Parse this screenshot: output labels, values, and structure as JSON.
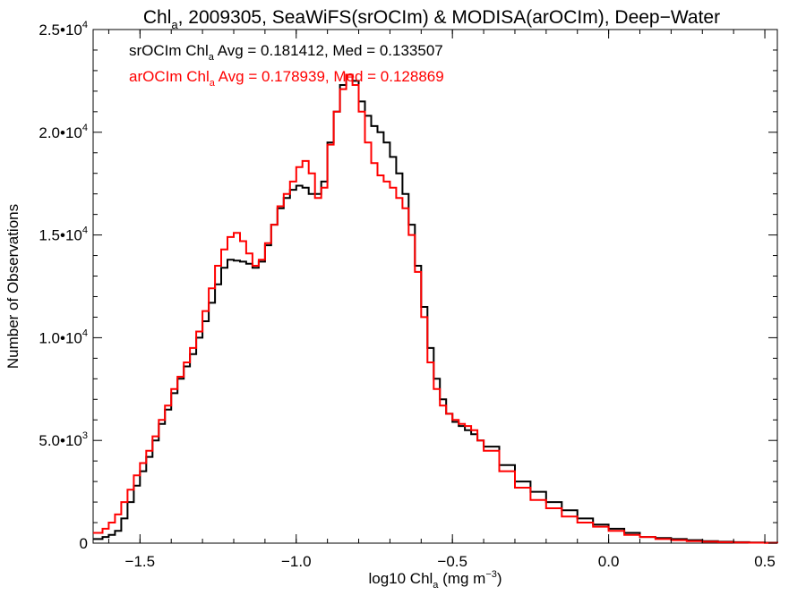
{
  "chart_data": {
    "type": "line",
    "title": {
      "prefix": "Chl",
      "sub": "a",
      "rest": ", 2009305, SeaWiFS(srOCIm) & MODISA(arOCIm), Deep−Water"
    },
    "xlabel": {
      "prefix": "log10 Chl",
      "sub": "a",
      "rest": " (mg m",
      "sup": "−3",
      "end": ")"
    },
    "ylabel": "Number of Observations",
    "xlim": [
      -1.65,
      0.54
    ],
    "ylim": [
      0,
      25000
    ],
    "xticks": [
      {
        "value": -1.5,
        "label": "−1.5"
      },
      {
        "value": -1.0,
        "label": "−1.0"
      },
      {
        "value": -0.5,
        "label": "−0.5"
      },
      {
        "value": 0.0,
        "label": "0.0"
      },
      {
        "value": 0.5,
        "label": "0.5"
      }
    ],
    "yticks": [
      {
        "value": 0,
        "mant": "0",
        "exp": ""
      },
      {
        "value": 5000,
        "mant": "5.0•10",
        "exp": "3"
      },
      {
        "value": 10000,
        "mant": "1.0•10",
        "exp": "4"
      },
      {
        "value": 15000,
        "mant": "1.5•10",
        "exp": "4"
      },
      {
        "value": 20000,
        "mant": "2.0•10",
        "exp": "4"
      },
      {
        "value": 25000,
        "mant": "2.5•10",
        "exp": "4"
      }
    ],
    "grid": false,
    "legend_position": "top-left",
    "annotations": [
      {
        "series": "srOCIm",
        "color": "#000000",
        "prefix": "srOCIm Chl",
        "sub": "a",
        "rest": " Avg = 0.181412, Med = 0.133507"
      },
      {
        "series": "arOCIm",
        "color": "#ff0000",
        "prefix": "arOCIm Chl",
        "sub": "a",
        "rest": " Avg = 0.178939, Med = 0.128869"
      }
    ],
    "series": [
      {
        "name": "srOCIm",
        "color": "#000000",
        "x": [
          -1.65,
          -1.62,
          -1.6,
          -1.58,
          -1.56,
          -1.54,
          -1.52,
          -1.5,
          -1.48,
          -1.46,
          -1.44,
          -1.42,
          -1.4,
          -1.38,
          -1.36,
          -1.34,
          -1.32,
          -1.3,
          -1.28,
          -1.26,
          -1.24,
          -1.22,
          -1.2,
          -1.18,
          -1.16,
          -1.14,
          -1.12,
          -1.1,
          -1.08,
          -1.06,
          -1.04,
          -1.02,
          -1.0,
          -0.98,
          -0.96,
          -0.94,
          -0.92,
          -0.9,
          -0.88,
          -0.86,
          -0.84,
          -0.82,
          -0.8,
          -0.78,
          -0.76,
          -0.74,
          -0.72,
          -0.7,
          -0.68,
          -0.66,
          -0.64,
          -0.62,
          -0.6,
          -0.58,
          -0.56,
          -0.54,
          -0.52,
          -0.5,
          -0.48,
          -0.46,
          -0.44,
          -0.42,
          -0.4,
          -0.35,
          -0.3,
          -0.25,
          -0.2,
          -0.15,
          -0.1,
          -0.05,
          0.0,
          0.05,
          0.1,
          0.15,
          0.2,
          0.25,
          0.3,
          0.35,
          0.4,
          0.45,
          0.5,
          0.54
        ],
        "y": [
          200,
          300,
          400,
          600,
          1200,
          2000,
          2800,
          3500,
          4200,
          5000,
          5800,
          6500,
          7300,
          8000,
          8600,
          9200,
          10000,
          10800,
          11700,
          12600,
          13400,
          13800,
          13750,
          13700,
          13600,
          13400,
          13700,
          14500,
          15500,
          16300,
          16800,
          17200,
          17400,
          17300,
          17000,
          17000,
          17600,
          19500,
          21000,
          22300,
          22800,
          22500,
          21500,
          20800,
          20300,
          20000,
          19500,
          18800,
          18000,
          17000,
          15500,
          13500,
          11500,
          9500,
          8000,
          7000,
          6300,
          5900,
          5700,
          5500,
          5300,
          5000,
          4700,
          3800,
          3000,
          2500,
          2000,
          1600,
          1200,
          900,
          700,
          500,
          300,
          250,
          200,
          150,
          100,
          70,
          50,
          30,
          20,
          10
        ]
      },
      {
        "name": "arOCIm",
        "color": "#ff0000",
        "x": [
          -1.65,
          -1.62,
          -1.6,
          -1.58,
          -1.56,
          -1.54,
          -1.52,
          -1.5,
          -1.48,
          -1.46,
          -1.44,
          -1.42,
          -1.4,
          -1.38,
          -1.36,
          -1.34,
          -1.32,
          -1.3,
          -1.28,
          -1.26,
          -1.24,
          -1.22,
          -1.2,
          -1.18,
          -1.16,
          -1.14,
          -1.12,
          -1.1,
          -1.08,
          -1.06,
          -1.04,
          -1.02,
          -1.0,
          -0.98,
          -0.96,
          -0.94,
          -0.92,
          -0.9,
          -0.88,
          -0.86,
          -0.84,
          -0.82,
          -0.8,
          -0.78,
          -0.76,
          -0.74,
          -0.72,
          -0.7,
          -0.68,
          -0.66,
          -0.64,
          -0.62,
          -0.6,
          -0.58,
          -0.56,
          -0.54,
          -0.52,
          -0.5,
          -0.48,
          -0.46,
          -0.44,
          -0.42,
          -0.4,
          -0.35,
          -0.3,
          -0.25,
          -0.2,
          -0.15,
          -0.1,
          -0.05,
          0.0,
          0.05,
          0.1,
          0.15,
          0.2,
          0.25,
          0.3,
          0.35,
          0.4,
          0.45,
          0.5,
          0.54
        ],
        "y": [
          500,
          700,
          1000,
          1400,
          2000,
          2600,
          3300,
          3900,
          4500,
          5200,
          6000,
          6700,
          7500,
          8100,
          8800,
          9500,
          10300,
          11300,
          12400,
          13500,
          14300,
          14900,
          15100,
          14700,
          14100,
          13500,
          13800,
          14600,
          15500,
          16400,
          17000,
          17600,
          18300,
          18600,
          18000,
          16800,
          17300,
          19400,
          21000,
          22100,
          22800,
          22300,
          21000,
          19500,
          18500,
          17900,
          17600,
          17300,
          16800,
          16300,
          15000,
          13200,
          11000,
          8800,
          7500,
          6700,
          6300,
          6000,
          5800,
          5700,
          5500,
          5000,
          4500,
          3500,
          2700,
          2100,
          1700,
          1300,
          1000,
          800,
          600,
          400,
          300,
          200,
          150,
          100,
          70,
          50,
          30,
          20,
          10,
          5
        ]
      }
    ]
  }
}
